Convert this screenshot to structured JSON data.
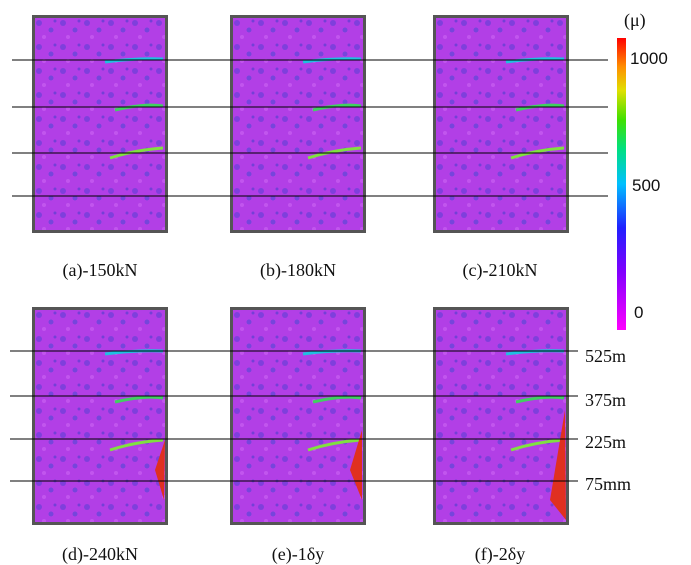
{
  "panels": [
    "(a)-150kN",
    "(b)-180kN",
    "(c)-210kN",
    "(d)-240kN",
    "(e)-1δy",
    "(f)-2δy"
  ],
  "colorbar": {
    "unit": "(μ)",
    "ticks": [
      1000,
      500,
      0
    ]
  },
  "line_labels": [
    "525m",
    "375m",
    "225m",
    "75mm"
  ]
}
